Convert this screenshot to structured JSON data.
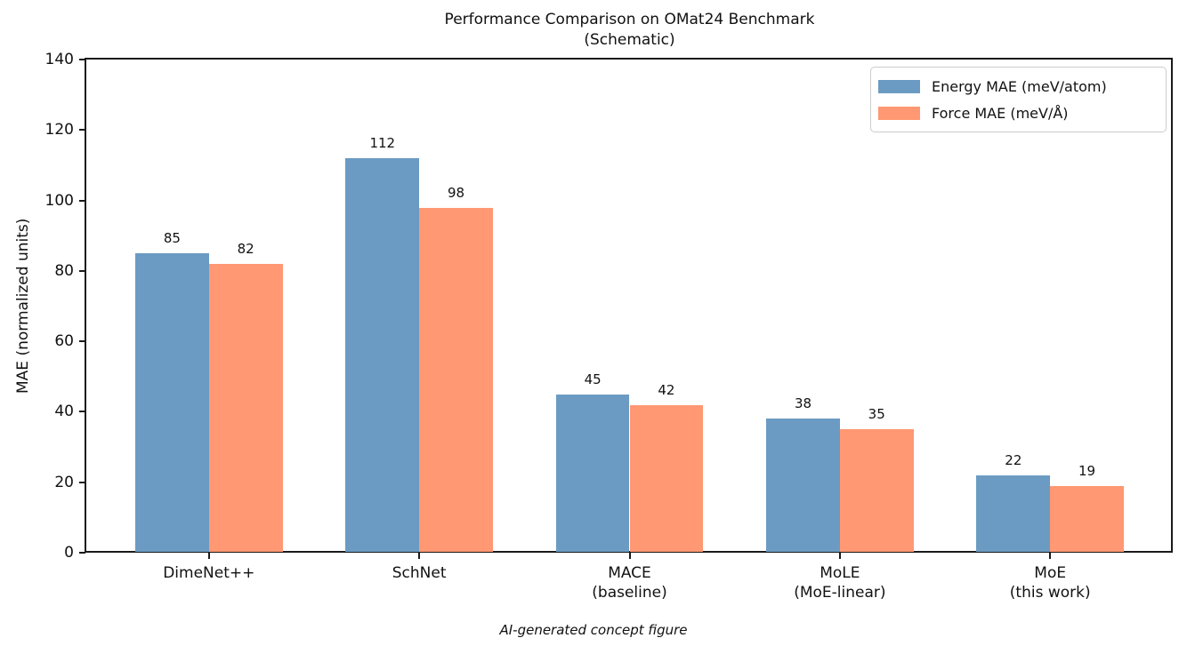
{
  "figure": {
    "title_line1": "Performance Comparison on OMat24 Benchmark",
    "title_line2": "(Schematic)",
    "caption": "AI-generated concept figure",
    "colors": {
      "frame": "#1a1a1a",
      "text": "#111111",
      "legend_border": "#cccccc"
    }
  },
  "chart_data": {
    "type": "bar",
    "title": "Performance Comparison on OMat24 Benchmark\n(Schematic)",
    "categories": [
      "DimeNet++",
      "SchNet",
      "MACE\n(baseline)",
      "MoLE\n(MoE-linear)",
      "MoE\n(this work)"
    ],
    "series": [
      {
        "name": "Energy MAE (meV/atom)",
        "color": "#6b9bc3",
        "values": [
          85,
          112,
          45,
          38,
          22
        ]
      },
      {
        "name": "Force MAE (meV/Å)",
        "color": "#ff9873",
        "values": [
          82,
          98,
          42,
          35,
          19
        ]
      }
    ],
    "xlabel": "",
    "ylabel": "MAE (normalized units)",
    "ylim": [
      0,
      140
    ],
    "yticks": [
      0,
      20,
      40,
      60,
      80,
      100,
      120,
      140
    ],
    "bar_width": 0.35,
    "grid": false,
    "legend_position": "upper right",
    "bar_labels": true
  }
}
